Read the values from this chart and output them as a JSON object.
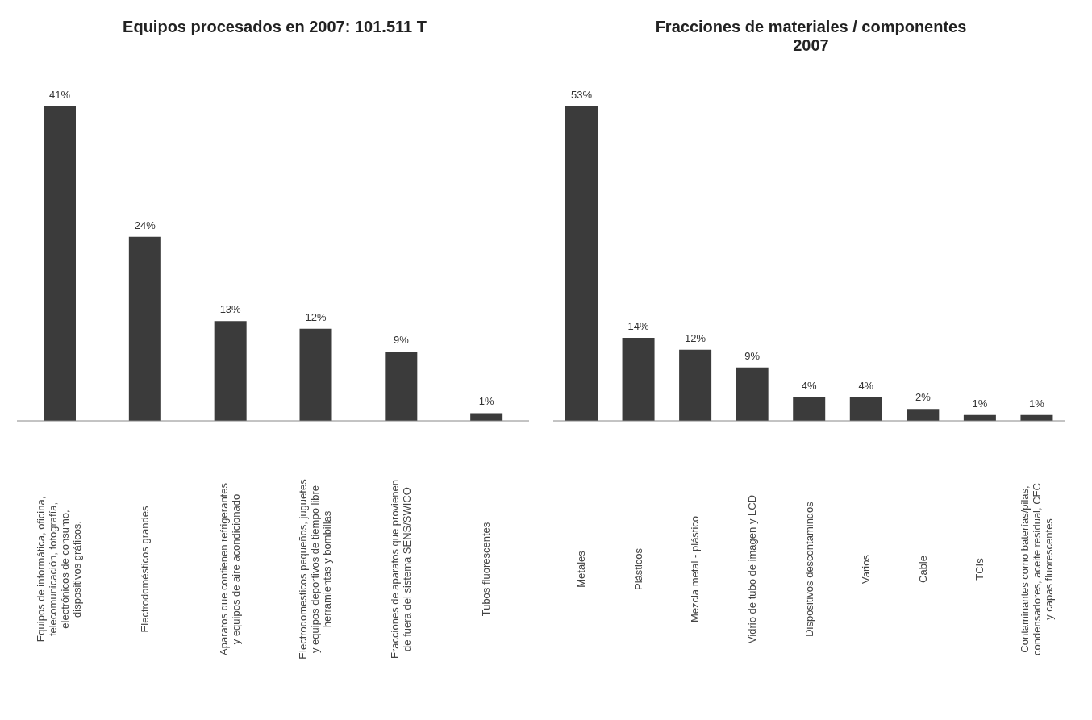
{
  "chart_data": [
    {
      "type": "bar",
      "title": "Equipos procesados en 2007: 101.511 T",
      "categories": [
        "Equipos de informática, oficina, telecomunicación, fotografía, electrónicos de consumo, dispositivos gráficos.",
        "Electrodomésticos grandes",
        "Aparatos que contienen refrigerantes y equipos de aire acondicionado",
        "Electrodomesticos pequeños, juguetes y equipos deportivos de tiempo libre herramientas y bombillas",
        "Fracciones de aparatos que provienen de fuera del sistema SENS/SWICO",
        "Tubos fluorescentes"
      ],
      "values": [
        41,
        24,
        13,
        12,
        9,
        1
      ],
      "value_labels": [
        "41%",
        "24%",
        "13%",
        "12%",
        "9%",
        "1%"
      ],
      "color": "#3b3b3b"
    },
    {
      "type": "bar",
      "title": "Fracciones de materiales / componentes 2007",
      "categories": [
        "Metales",
        "Plásticos",
        "Mezcla metal - plástico",
        "Vidrio de tubo de imagen y LCD",
        "Dispositivos descontamindos",
        "Varios",
        "Cable",
        "TCIs",
        "Contaminantes como baterías/pilas, condensadores, aceite residual, CFC y capas fluorescentes"
      ],
      "values": [
        53,
        14,
        12,
        9,
        4,
        4,
        2,
        1,
        1
      ],
      "value_labels": [
        "53%",
        "14%",
        "12%",
        "9%",
        "4%",
        "4%",
        "2%",
        "1%",
        "1%"
      ],
      "color": "#3b3b3b"
    }
  ]
}
